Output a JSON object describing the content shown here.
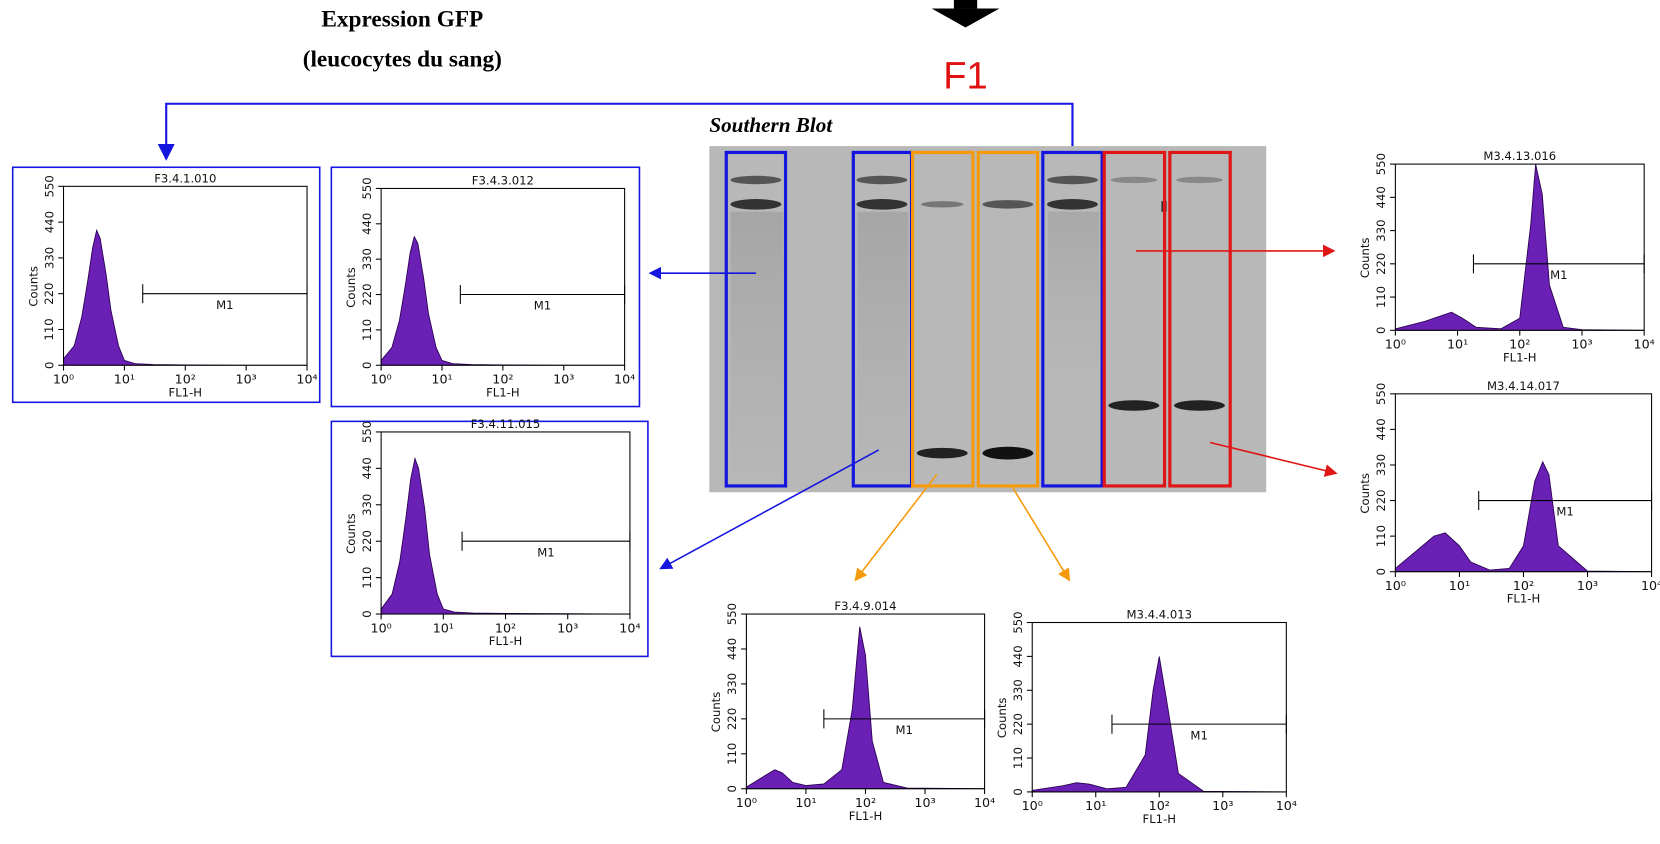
{
  "header": {
    "title": "Expression GFP",
    "subtitle": "(leucocytes du sang)"
  },
  "generation": "F1",
  "blot": {
    "title": "Southern Blot"
  },
  "chart_data": [
    {
      "type": "area",
      "title": "F3.4.1.010",
      "xlabel": "FL1-H",
      "ylabel": "Counts",
      "color": "#6a1fb5",
      "log_x": true,
      "x": [
        1,
        1.5,
        2,
        2.5,
        3,
        3.5,
        4,
        5,
        6,
        8,
        10,
        15,
        30,
        100,
        1000,
        10000
      ],
      "values": [
        20,
        60,
        150,
        260,
        360,
        415,
        390,
        280,
        170,
        60,
        15,
        5,
        2,
        1,
        0,
        0
      ],
      "xlim": [
        1,
        10000
      ],
      "xticks": [
        {
          "value": 1,
          "label": "10⁰"
        },
        {
          "value": 10,
          "label": "10¹"
        },
        {
          "value": 100,
          "label": "10²"
        },
        {
          "value": 1000,
          "label": "10³"
        },
        {
          "value": 10000,
          "label": "10⁴"
        }
      ],
      "ylim": [
        0,
        550
      ],
      "yticks": [
        0,
        110,
        220,
        330,
        440,
        550
      ],
      "gate": {
        "label": "M1",
        "range": [
          20,
          10000
        ]
      }
    },
    {
      "type": "area",
      "title": "F3.4.3.012",
      "xlabel": "FL1-H",
      "ylabel": "Counts",
      "color": "#6a1fb5",
      "log_x": true,
      "x": [
        1,
        1.5,
        2,
        2.5,
        3,
        3.5,
        4,
        5,
        6,
        8,
        10,
        15,
        30,
        100,
        1000,
        10000
      ],
      "values": [
        15,
        55,
        140,
        250,
        350,
        400,
        380,
        270,
        160,
        55,
        15,
        5,
        2,
        1,
        0,
        0
      ],
      "xlim": [
        1,
        10000
      ],
      "xticks": [
        {
          "value": 1,
          "label": "10⁰"
        },
        {
          "value": 10,
          "label": "10¹"
        },
        {
          "value": 100,
          "label": "10²"
        },
        {
          "value": 1000,
          "label": "10³"
        },
        {
          "value": 10000,
          "label": "10⁴"
        }
      ],
      "ylim": [
        0,
        550
      ],
      "yticks": [
        0,
        110,
        220,
        330,
        440,
        550
      ],
      "gate": {
        "label": "M1",
        "range": [
          20,
          10000
        ]
      }
    },
    {
      "type": "area",
      "title": "F3.4.11.015",
      "xlabel": "FL1-H",
      "ylabel": "Counts",
      "color": "#6a1fb5",
      "log_x": true,
      "x": [
        1,
        1.5,
        2,
        2.5,
        3,
        3.5,
        4,
        5,
        6,
        8,
        10,
        15,
        30,
        100,
        1000,
        10000
      ],
      "values": [
        15,
        60,
        160,
        290,
        410,
        470,
        440,
        320,
        180,
        60,
        15,
        6,
        3,
        2,
        1,
        0
      ],
      "xlim": [
        1,
        10000
      ],
      "xticks": [
        {
          "value": 1,
          "label": "10⁰"
        },
        {
          "value": 10,
          "label": "10¹"
        },
        {
          "value": 100,
          "label": "10²"
        },
        {
          "value": 1000,
          "label": "10³"
        },
        {
          "value": 10000,
          "label": "10⁴"
        }
      ],
      "ylim": [
        0,
        550
      ],
      "yticks": [
        0,
        110,
        220,
        330,
        440,
        550
      ],
      "gate": {
        "label": "M1",
        "range": [
          20,
          10000
        ]
      }
    },
    {
      "type": "area",
      "title": "F3.4.9.014",
      "xlabel": "FL1-H",
      "ylabel": "Counts",
      "color": "#6a1fb5",
      "log_x": true,
      "x": [
        1,
        2,
        3,
        4,
        6,
        10,
        20,
        40,
        60,
        80,
        100,
        130,
        200,
        500,
        10000
      ],
      "values": [
        5,
        40,
        60,
        50,
        20,
        10,
        15,
        60,
        250,
        510,
        420,
        150,
        20,
        2,
        0
      ],
      "xlim": [
        1,
        10000
      ],
      "xticks": [
        {
          "value": 1,
          "label": "10⁰"
        },
        {
          "value": 10,
          "label": "10¹"
        },
        {
          "value": 100,
          "label": "10²"
        },
        {
          "value": 1000,
          "label": "10³"
        },
        {
          "value": 10000,
          "label": "10⁴"
        }
      ],
      "ylim": [
        0,
        550
      ],
      "yticks": [
        0,
        110,
        220,
        330,
        440,
        550
      ],
      "gate": {
        "label": "M1",
        "range": [
          20,
          10000
        ]
      }
    },
    {
      "type": "area",
      "title": "M3.4.4.013",
      "xlabel": "FL1-H",
      "ylabel": "Counts",
      "color": "#6a1fb5",
      "log_x": true,
      "x": [
        1,
        3,
        5,
        8,
        15,
        30,
        60,
        80,
        100,
        130,
        200,
        500,
        10000
      ],
      "values": [
        5,
        20,
        30,
        25,
        10,
        15,
        120,
        330,
        440,
        300,
        60,
        2,
        0
      ],
      "xlim": [
        1,
        10000
      ],
      "xticks": [
        {
          "value": 1,
          "label": "10⁰"
        },
        {
          "value": 10,
          "label": "10¹"
        },
        {
          "value": 100,
          "label": "10²"
        },
        {
          "value": 1000,
          "label": "10³"
        },
        {
          "value": 10000,
          "label": "10⁴"
        }
      ],
      "ylim": [
        0,
        550
      ],
      "yticks": [
        0,
        110,
        220,
        330,
        440,
        550
      ],
      "gate": {
        "label": "M1",
        "range": [
          18,
          10000
        ]
      }
    },
    {
      "type": "area",
      "title": "M3.4.13.016",
      "xlabel": "FL1-H",
      "ylabel": "Counts",
      "color": "#6a1fb5",
      "log_x": true,
      "x": [
        1,
        3,
        8,
        12,
        20,
        50,
        100,
        150,
        180,
        230,
        300,
        500,
        1000,
        10000
      ],
      "values": [
        5,
        30,
        60,
        40,
        10,
        5,
        40,
        350,
        550,
        450,
        150,
        10,
        2,
        0
      ],
      "xlim": [
        1,
        10000
      ],
      "xticks": [
        {
          "value": 1,
          "label": "10⁰"
        },
        {
          "value": 10,
          "label": "10¹"
        },
        {
          "value": 100,
          "label": "10²"
        },
        {
          "value": 1000,
          "label": "10³"
        },
        {
          "value": 10000,
          "label": "10⁴"
        }
      ],
      "ylim": [
        0,
        550
      ],
      "yticks": [
        0,
        110,
        220,
        330,
        440,
        550
      ],
      "gate": {
        "label": "M1",
        "range": [
          18,
          10000
        ]
      }
    },
    {
      "type": "area",
      "title": "M3.4.14.017",
      "xlabel": "FL1-H",
      "ylabel": "Counts",
      "color": "#6a1fb5",
      "log_x": true,
      "x": [
        1,
        2,
        4,
        6,
        10,
        15,
        30,
        60,
        100,
        150,
        200,
        250,
        350,
        1000,
        10000
      ],
      "values": [
        10,
        60,
        110,
        120,
        80,
        30,
        5,
        10,
        80,
        280,
        340,
        300,
        80,
        2,
        0
      ],
      "xlim": [
        1,
        10000
      ],
      "xticks": [
        {
          "value": 1,
          "label": "10⁰"
        },
        {
          "value": 10,
          "label": "10¹"
        },
        {
          "value": 100,
          "label": "10²"
        },
        {
          "value": 1000,
          "label": "10³"
        },
        {
          "value": 10000,
          "label": "10⁴"
        }
      ],
      "ylim": [
        0,
        550
      ],
      "yticks": [
        0,
        110,
        220,
        330,
        440,
        550
      ],
      "gate": {
        "label": "M1",
        "range": [
          20,
          10000
        ]
      }
    }
  ]
}
